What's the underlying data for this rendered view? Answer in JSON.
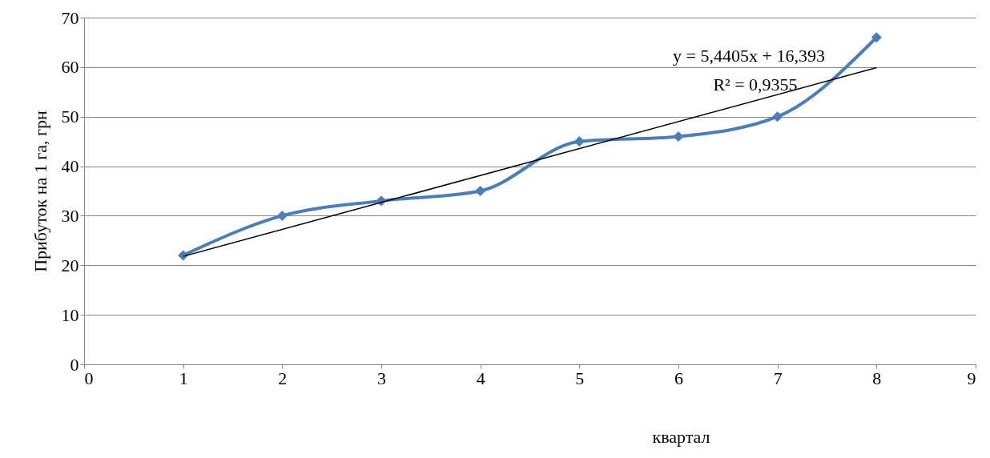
{
  "chart_data": {
    "type": "line",
    "xlabel": "квартал",
    "ylabel": "Прибуток на 1 га, грн",
    "x": [
      1,
      2,
      3,
      4,
      5,
      6,
      7,
      8
    ],
    "series": [
      {
        "color": "#4a7ebb",
        "values": [
          22,
          30,
          33,
          35,
          45,
          46,
          50,
          66
        ],
        "marker": "diamond"
      },
      {
        "type": "line",
        "color": "#000000",
        "x": [
          1,
          8
        ],
        "values": [
          21.8,
          59.9
        ],
        "marker": "none"
      }
    ],
    "xlim": [
      0,
      9
    ],
    "xticks": [
      0,
      1,
      2,
      3,
      4,
      5,
      6,
      7,
      8,
      9
    ],
    "ylim": [
      0,
      70
    ],
    "yticks": [
      0,
      10,
      20,
      30,
      40,
      50,
      60,
      70
    ],
    "grid": "y",
    "annotations": [
      "y = 5,4405x + 16,393",
      "R² = 0,9355"
    ]
  }
}
